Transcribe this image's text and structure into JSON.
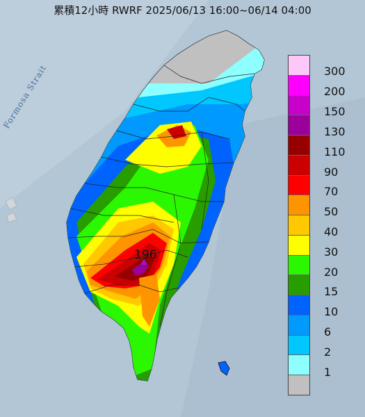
{
  "title": "累積12小時 RWRF 2025/06/13 16:00~06/14 04:00",
  "map": {
    "strait_label": "Formosa Strait",
    "max_value": "196",
    "max_marker": "triangle-icon"
  },
  "legend": {
    "labels": [
      "300",
      "200",
      "150",
      "130",
      "110",
      "90",
      "70",
      "50",
      "40",
      "30",
      "20",
      "15",
      "10",
      "6",
      "2",
      "1"
    ],
    "colors": [
      "#fdc8f8",
      "#fd00fd",
      "#c800cc",
      "#9b009c",
      "#970000",
      "#cb0000",
      "#fe0000",
      "#fe9500",
      "#ffc800",
      "#fefe00",
      "#2bf700",
      "#279d00",
      "#0063fe",
      "#0099fe",
      "#00c7fe",
      "#8dfffe",
      "#c0c0c0"
    ]
  }
}
